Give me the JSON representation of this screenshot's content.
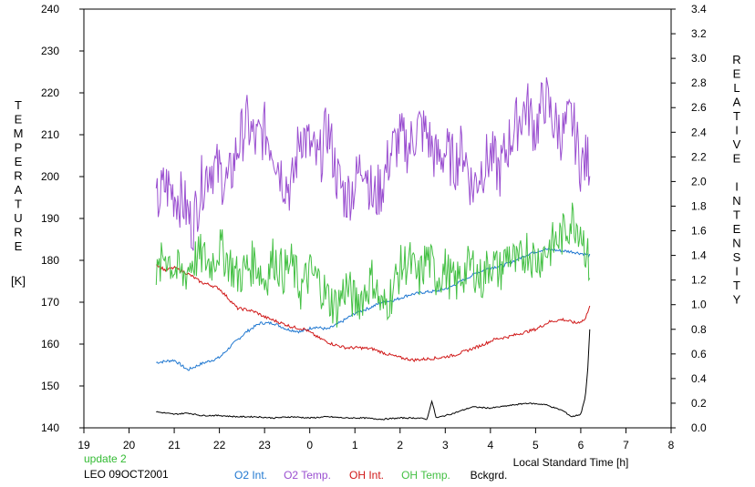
{
  "chart_data": {
    "type": "line",
    "title": "",
    "xlabel": "Local Standard Time [h]",
    "ylabel_left_letters": [
      "T",
      "E",
      "M",
      "P",
      "E",
      "R",
      "A",
      "T",
      "U",
      "R",
      "E"
    ],
    "ylabel_left_unit": "[K]",
    "ylabel_right_words": [
      [
        "R",
        "E",
        "L",
        "A",
        "T",
        "I",
        "V",
        "E"
      ],
      [
        "I",
        "N",
        "T",
        "E",
        "N",
        "S",
        "I",
        "T",
        "Y"
      ]
    ],
    "x_ticks": [
      "19",
      "20",
      "21",
      "22",
      "23",
      "0",
      "1",
      "2",
      "3",
      "4",
      "5",
      "6",
      "7",
      "8"
    ],
    "y_left_ticks": [
      "140",
      "150",
      "160",
      "170",
      "180",
      "190",
      "200",
      "210",
      "220",
      "230",
      "240"
    ],
    "y_right_ticks": [
      "0.0",
      "0.2",
      "0.4",
      "0.6",
      "0.8",
      "1.0",
      "1.2",
      "1.4",
      "1.6",
      "1.8",
      "2.0",
      "2.2",
      "2.4",
      "2.6",
      "2.8",
      "3.0",
      "3.2",
      "3.4"
    ],
    "xlim": [
      19,
      32
    ],
    "ylim_left": [
      140,
      240
    ],
    "ylim_right": [
      0,
      3.4
    ],
    "grid": false,
    "legend_placement": "bottom",
    "annotations": {
      "update": "update 2",
      "station": "LEO 09OCT2001"
    },
    "series": [
      {
        "name": "O2 Int.",
        "axis": "right",
        "color": "#1f77d0",
        "x": [
          20.6,
          21.0,
          21.3,
          21.6,
          22.0,
          22.3,
          22.6,
          22.9,
          23.2,
          23.5,
          23.8,
          24.1,
          24.4,
          24.7,
          25.0,
          25.3,
          25.6,
          25.9,
          26.2,
          26.5,
          26.8,
          27.1,
          27.4,
          27.7,
          28.0,
          28.3,
          28.6,
          28.9,
          29.2,
          29.5,
          29.8,
          30.1,
          30.2
        ],
        "y": [
          0.53,
          0.55,
          0.47,
          0.52,
          0.57,
          0.68,
          0.78,
          0.85,
          0.85,
          0.8,
          0.78,
          0.82,
          0.8,
          0.86,
          0.93,
          0.97,
          1.02,
          1.04,
          1.08,
          1.1,
          1.11,
          1.14,
          1.2,
          1.26,
          1.3,
          1.32,
          1.37,
          1.42,
          1.45,
          1.44,
          1.43,
          1.41,
          1.4
        ]
      },
      {
        "name": "O2 Temp.",
        "axis": "left",
        "color": "#9a4fd0",
        "x": [
          20.6,
          20.8,
          21.0,
          21.2,
          21.4,
          21.6,
          21.8,
          22.0,
          22.2,
          22.4,
          22.6,
          22.8,
          23.0,
          23.2,
          23.4,
          23.6,
          23.8,
          24.0,
          24.2,
          24.4,
          24.6,
          24.8,
          25.0,
          25.2,
          25.4,
          25.6,
          25.8,
          26.0,
          26.2,
          26.4,
          26.6,
          26.8,
          27.0,
          27.2,
          27.4,
          27.6,
          27.8,
          28.0,
          28.2,
          28.4,
          28.6,
          28.8,
          29.0,
          29.2,
          29.4,
          29.6,
          29.8,
          30.0,
          30.2
        ],
        "y": [
          193,
          198,
          196,
          194,
          188,
          198,
          203,
          201,
          198,
          207,
          213,
          208,
          211,
          207,
          200,
          197,
          211,
          207,
          203,
          212,
          200,
          195,
          198,
          205,
          194,
          198,
          206,
          209,
          207,
          212,
          210,
          204,
          206,
          203,
          207,
          197,
          202,
          205,
          201,
          208,
          213,
          217,
          211,
          219,
          213,
          210,
          214,
          203,
          204
        ]
      },
      {
        "name": "OH Int.",
        "axis": "right",
        "color": "#d01818",
        "x": [
          20.6,
          20.8,
          21.0,
          21.2,
          21.4,
          21.6,
          21.8,
          22.0,
          22.2,
          22.4,
          22.6,
          22.8,
          23.0,
          23.3,
          23.6,
          23.9,
          24.2,
          24.5,
          24.8,
          25.1,
          25.4,
          25.7,
          26.0,
          26.3,
          26.6,
          26.9,
          27.2,
          27.5,
          27.8,
          28.1,
          28.4,
          28.7,
          29.0,
          29.3,
          29.6,
          29.9,
          30.1,
          30.2
        ],
        "y": [
          1.33,
          1.28,
          1.3,
          1.27,
          1.23,
          1.18,
          1.16,
          1.13,
          1.05,
          0.97,
          0.96,
          0.94,
          0.9,
          0.86,
          0.82,
          0.8,
          0.73,
          0.68,
          0.65,
          0.65,
          0.64,
          0.6,
          0.57,
          0.55,
          0.56,
          0.57,
          0.59,
          0.63,
          0.67,
          0.72,
          0.74,
          0.77,
          0.8,
          0.86,
          0.88,
          0.85,
          0.88,
          1.0
        ]
      },
      {
        "name": "OH Temp.",
        "axis": "left",
        "color": "#44c044",
        "x": [
          20.6,
          20.8,
          21.0,
          21.2,
          21.4,
          21.6,
          21.8,
          22.0,
          22.2,
          22.4,
          22.6,
          22.8,
          23.0,
          23.2,
          23.4,
          23.6,
          23.8,
          24.0,
          24.2,
          24.4,
          24.6,
          24.8,
          25.0,
          25.2,
          25.4,
          25.6,
          25.8,
          26.0,
          26.2,
          26.4,
          26.6,
          26.8,
          27.0,
          27.2,
          27.4,
          27.6,
          27.8,
          28.0,
          28.2,
          28.4,
          28.6,
          28.8,
          29.0,
          29.2,
          29.4,
          29.6,
          29.8,
          30.0,
          30.2
        ],
        "y": [
          175,
          182,
          178,
          176,
          180,
          181,
          179,
          183,
          180,
          176,
          178,
          180,
          175,
          181,
          177,
          179,
          173,
          177,
          175,
          171,
          169,
          174,
          170,
          172,
          176,
          168,
          172,
          178,
          180,
          175,
          181,
          176,
          178,
          174,
          177,
          179,
          175,
          180,
          177,
          182,
          178,
          183,
          180,
          182,
          184,
          186,
          190,
          188,
          178
        ]
      },
      {
        "name": "Bckgrd.",
        "axis": "right",
        "color": "#000000",
        "x": [
          20.6,
          21.0,
          21.3,
          21.6,
          22.0,
          22.4,
          22.8,
          23.2,
          23.6,
          24.0,
          24.4,
          24.8,
          25.2,
          25.6,
          26.0,
          26.4,
          26.6,
          26.7,
          26.8,
          27.2,
          27.6,
          28.0,
          28.4,
          28.8,
          29.2,
          29.6,
          29.8,
          30.0,
          30.1,
          30.15,
          30.2
        ],
        "y": [
          0.13,
          0.11,
          0.12,
          0.1,
          0.1,
          0.09,
          0.09,
          0.08,
          0.09,
          0.08,
          0.09,
          0.08,
          0.08,
          0.07,
          0.08,
          0.08,
          0.07,
          0.22,
          0.08,
          0.12,
          0.17,
          0.16,
          0.18,
          0.2,
          0.19,
          0.14,
          0.09,
          0.11,
          0.25,
          0.45,
          0.8
        ]
      }
    ]
  }
}
